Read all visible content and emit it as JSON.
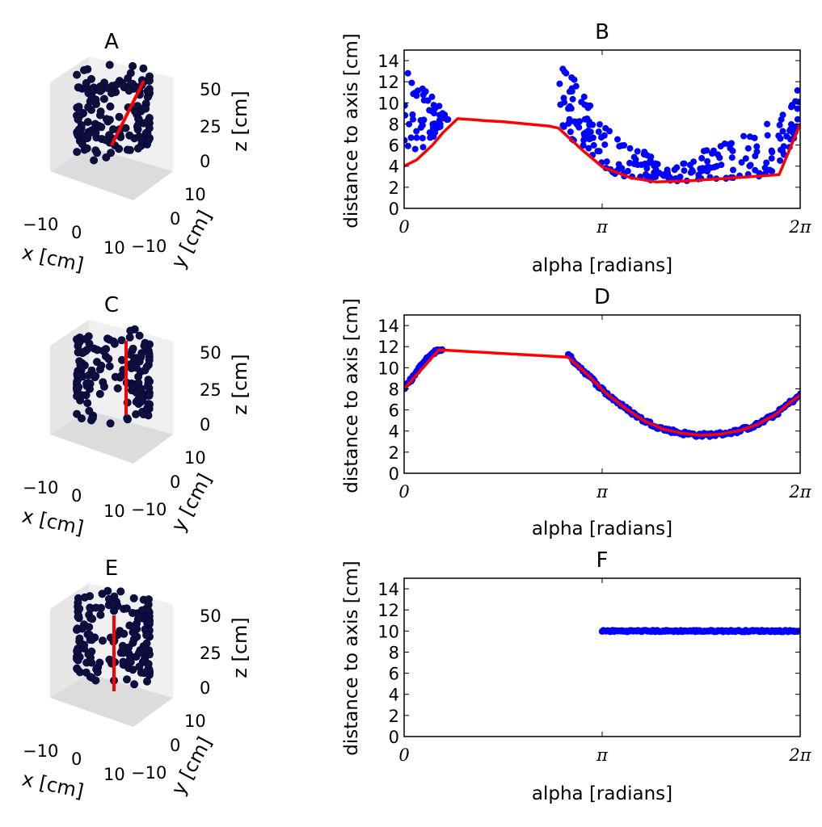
{
  "colors": {
    "points": "#0000ff",
    "fit_line": "#ff0000",
    "axis": "#000000",
    "pane_light": "#f2f2f2",
    "pane_mid": "#e6e6e6",
    "pane_dark": "#dcdcdc"
  },
  "panels_3d": [
    {
      "title": "A",
      "axis_line": "tilted",
      "labels": {
        "x": "x [cm]",
        "y": "y [cm]",
        "z": "z [cm]"
      },
      "x_ticks": [
        "−10",
        "0",
        "10"
      ],
      "y_ticks": [
        "−10",
        "0",
        "10"
      ],
      "z_ticks": [
        "50",
        "25",
        "0"
      ]
    },
    {
      "title": "C",
      "axis_line": "vertical-center",
      "labels": {
        "x": "x [cm]",
        "y": "y [cm]",
        "z": "z [cm]"
      },
      "x_ticks": [
        "−10",
        "0",
        "10"
      ],
      "y_ticks": [
        "−10",
        "0",
        "10"
      ],
      "z_ticks": [
        "50",
        "25",
        "0"
      ]
    },
    {
      "title": "E",
      "axis_line": "vertical-offset",
      "labels": {
        "x": "x [cm]",
        "y": "y [cm]",
        "z": "z [cm]"
      },
      "x_ticks": [
        "−10",
        "0",
        "10"
      ],
      "y_ticks": [
        "−10",
        "0",
        "10"
      ],
      "z_ticks": [
        "50",
        "25",
        "0"
      ]
    }
  ],
  "chart_data": [
    {
      "type": "scatter",
      "title": "B",
      "xlabel": "alpha [radians]",
      "ylabel": "distance to axis [cm]",
      "xlim": [
        0,
        6.2832
      ],
      "ylim": [
        0,
        15
      ],
      "x_tick_labels": [
        "0",
        "π",
        "2π"
      ],
      "y_tick_labels": [
        "0",
        "2",
        "4",
        "6",
        "8",
        "10",
        "12",
        "14"
      ],
      "series": [
        {
          "name": "points",
          "kind": "scatter",
          "ranges": [
            {
              "x": [
                0.0,
                0.7
              ],
              "y_lo": [
                3.8,
                8.3
              ],
              "y_hi": [
                14.0,
                8.6
              ],
              "n": 60
            },
            {
              "x": [
                2.45,
                3.15
              ],
              "y_lo": [
                7.6,
                4.2
              ],
              "y_hi": [
                14.8,
                7.8
              ],
              "n": 60
            },
            {
              "x": [
                3.15,
                4.2
              ],
              "y_lo": [
                3.4,
                2.3
              ],
              "y_hi": [
                7.8,
                4.0
              ],
              "n": 60
            },
            {
              "x": [
                4.2,
                5.9
              ],
              "y_lo": [
                2.5,
                3.1
              ],
              "y_hi": [
                4.0,
                8.6
              ],
              "n": 80
            },
            {
              "x": [
                5.9,
                6.2832
              ],
              "y_lo": [
                3.2,
                7.8
              ],
              "y_hi": [
                8.6,
                11.5
              ],
              "n": 30
            }
          ]
        },
        {
          "name": "fit",
          "kind": "line",
          "x": [
            0.0,
            0.2,
            0.45,
            0.62,
            0.85,
            1.1,
            1.3,
            1.6,
            2.3,
            2.45,
            2.85,
            3.15,
            3.6,
            4.0,
            4.5,
            5.0,
            5.5,
            5.95,
            6.2832
          ],
          "y": [
            4.0,
            4.6,
            6.0,
            7.2,
            8.5,
            8.4,
            8.3,
            8.2,
            7.8,
            7.6,
            5.4,
            3.9,
            2.9,
            2.5,
            2.6,
            2.8,
            3.0,
            3.2,
            8.0
          ]
        }
      ]
    },
    {
      "type": "scatter",
      "title": "D",
      "xlabel": "alpha [radians]",
      "ylabel": "distance to axis [cm]",
      "xlim": [
        0,
        6.2832
      ],
      "ylim": [
        0,
        15
      ],
      "x_tick_labels": [
        "0",
        "π",
        "2π"
      ],
      "y_tick_labels": [
        "0",
        "2",
        "4",
        "6",
        "8",
        "10",
        "12",
        "14"
      ],
      "series": [
        {
          "name": "points",
          "kind": "band",
          "jitter": 0.35,
          "segments": [
            {
              "x": [
                0.0,
                0.15,
                0.3,
                0.45,
                0.6
              ],
              "y": [
                8.0,
                9.2,
                10.4,
                11.4,
                11.8
              ]
            },
            {
              "x": [
                2.6,
                2.9,
                3.2,
                3.5,
                3.8,
                4.1,
                4.4,
                4.7,
                5.0,
                5.3,
                5.6,
                5.9,
                6.1,
                6.2832
              ],
              "y": [
                11.2,
                9.4,
                7.6,
                6.2,
                5.0,
                4.2,
                3.8,
                3.6,
                3.7,
                4.0,
                4.6,
                5.6,
                6.6,
                7.4
              ]
            }
          ],
          "n_per_segment": [
            40,
            160
          ]
        },
        {
          "name": "fit",
          "kind": "line",
          "x": [
            0.0,
            0.3,
            0.55,
            2.6,
            2.9,
            3.2,
            3.5,
            3.8,
            4.1,
            4.4,
            4.7,
            5.0,
            5.3,
            5.6,
            5.9,
            6.1,
            6.2832
          ],
          "y": [
            8.0,
            10.0,
            11.7,
            11.0,
            9.4,
            7.6,
            6.2,
            5.0,
            4.2,
            3.8,
            3.6,
            3.7,
            4.0,
            4.6,
            5.6,
            6.6,
            7.4
          ]
        }
      ]
    },
    {
      "type": "scatter",
      "title": "F",
      "xlabel": "alpha [radians]",
      "ylabel": "distance to axis [cm]",
      "xlim": [
        0,
        6.2832
      ],
      "ylim": [
        0,
        15
      ],
      "x_tick_labels": [
        "0",
        "π",
        "2π"
      ],
      "y_tick_labels": [
        "0",
        "2",
        "4",
        "6",
        "8",
        "10",
        "12",
        "14"
      ],
      "series": [
        {
          "name": "points",
          "kind": "band",
          "jitter": 0.15,
          "segments": [
            {
              "x": [
                3.1416,
                6.2832
              ],
              "y": [
                10.0,
                10.0
              ]
            }
          ],
          "n_per_segment": [
            150
          ]
        }
      ]
    }
  ]
}
